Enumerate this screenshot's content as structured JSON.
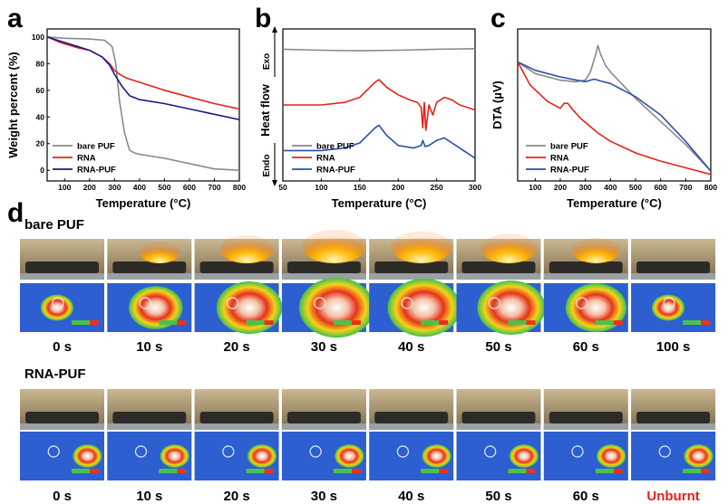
{
  "panels": {
    "a": "a",
    "b": "b",
    "c": "c",
    "d": "d"
  },
  "chart_data": [
    {
      "id": "a",
      "type": "line",
      "xlabel": "Temperature (°C)",
      "ylabel": "Weight percent (%)",
      "xlim": [
        30,
        800
      ],
      "ylim": [
        -8,
        106
      ],
      "xticks": [
        100,
        200,
        300,
        400,
        500,
        600,
        700,
        800
      ],
      "yticks": [
        0,
        20,
        40,
        60,
        80,
        100
      ],
      "legend_position": "bottom-left",
      "series": [
        {
          "name": "bare PUF",
          "color": "#8a8a8a",
          "x": [
            30,
            100,
            200,
            260,
            290,
            305,
            320,
            340,
            360,
            380,
            400,
            500,
            600,
            700,
            800
          ],
          "y": [
            100,
            99,
            98.5,
            97.5,
            93,
            80,
            52,
            28,
            15,
            13,
            12,
            9,
            5,
            1,
            0
          ]
        },
        {
          "name": "RNA",
          "color": "#e2231a",
          "x": [
            30,
            80,
            150,
            200,
            250,
            280,
            300,
            320,
            350,
            400,
            500,
            600,
            700,
            800
          ],
          "y": [
            100,
            96,
            92,
            90,
            85,
            80,
            75,
            72,
            69,
            66,
            60,
            55,
            50,
            46
          ]
        },
        {
          "name": "RNA-PUF",
          "color": "#1a1a8c",
          "x": [
            30,
            80,
            150,
            200,
            250,
            280,
            300,
            330,
            360,
            400,
            500,
            600,
            700,
            800
          ],
          "y": [
            100,
            97,
            93,
            90,
            85,
            79,
            72,
            63,
            56,
            53,
            50,
            46,
            42,
            38
          ]
        }
      ]
    },
    {
      "id": "b",
      "type": "line",
      "xlabel": "Temperature (°C)",
      "ylabel": "Heat flow",
      "exo_label": "Exo",
      "endo_label": "Endo",
      "xlim": [
        50,
        300
      ],
      "xticks": [
        50,
        100,
        150,
        200,
        250,
        300
      ],
      "legend_position": "bottom-center",
      "series": [
        {
          "name": "bare PUF",
          "color": "#8a8a8a",
          "x": [
            50,
            100,
            150,
            200,
            250,
            300
          ],
          "y": [
            0.0,
            -0.02,
            -0.03,
            -0.02,
            0.0,
            0.01
          ]
        },
        {
          "name": "RNA",
          "color": "#e2231a",
          "x": [
            50,
            100,
            130,
            150,
            160,
            170,
            175,
            185,
            200,
            215,
            225,
            230,
            232,
            234,
            236,
            240,
            245,
            250,
            260,
            270,
            280,
            290,
            300
          ],
          "y": [
            -1.1,
            -1.1,
            -1.05,
            -0.95,
            -0.8,
            -0.65,
            -0.6,
            -0.75,
            -0.9,
            -1.0,
            -1.05,
            -1.15,
            -1.55,
            -1.05,
            -1.6,
            -1.1,
            -1.3,
            -1.05,
            -0.95,
            -1.0,
            -1.1,
            -1.15,
            -1.2
          ]
        },
        {
          "name": "RNA-PUF",
          "color": "#2a4fa8",
          "x": [
            50,
            100,
            130,
            150,
            160,
            170,
            175,
            185,
            200,
            220,
            230,
            232,
            235,
            240,
            250,
            260,
            270,
            280,
            290,
            300
          ],
          "y": [
            -2.0,
            -2.0,
            -1.95,
            -1.85,
            -1.7,
            -1.55,
            -1.5,
            -1.7,
            -1.9,
            -1.95,
            -1.9,
            -1.8,
            -1.92,
            -1.9,
            -1.8,
            -1.75,
            -1.85,
            -1.95,
            -2.05,
            -2.15
          ]
        }
      ]
    },
    {
      "id": "c",
      "type": "line",
      "xlabel": "Temperature (°C)",
      "ylabel": "DTA (µV)",
      "xlim": [
        30,
        800
      ],
      "xticks": [
        100,
        200,
        300,
        400,
        500,
        600,
        700,
        800
      ],
      "legend_position": "bottom-center",
      "series": [
        {
          "name": "bare PUF",
          "color": "#8a8a8a",
          "x": [
            30,
            100,
            200,
            260,
            300,
            320,
            340,
            350,
            360,
            380,
            400,
            450,
            500,
            600,
            700,
            800
          ],
          "y": [
            0,
            -0.7,
            -1.1,
            -1.2,
            -1.1,
            -0.6,
            0.4,
            1.0,
            0.5,
            -0.2,
            -0.6,
            -1.4,
            -2.2,
            -3.6,
            -5.0,
            -6.6
          ]
        },
        {
          "name": "RNA",
          "color": "#e2231a",
          "x": [
            30,
            80,
            150,
            200,
            215,
            230,
            250,
            280,
            350,
            400,
            500,
            600,
            700,
            800
          ],
          "y": [
            0,
            -1.4,
            -2.4,
            -2.8,
            -2.5,
            -2.5,
            -2.9,
            -3.4,
            -4.3,
            -4.8,
            -5.5,
            -6.0,
            -6.4,
            -6.8
          ]
        },
        {
          "name": "RNA-PUF",
          "color": "#2a4fa8",
          "x": [
            30,
            100,
            200,
            300,
            330,
            340,
            360,
            400,
            500,
            600,
            700,
            800
          ],
          "y": [
            0,
            -0.5,
            -0.9,
            -1.2,
            -1.05,
            -1.05,
            -1.15,
            -1.3,
            -2.1,
            -3.2,
            -4.8,
            -6.6
          ]
        }
      ]
    }
  ],
  "panel_d": {
    "rows": [
      {
        "title": "bare PUF",
        "labels": [
          "0 s",
          "10 s",
          "20 s",
          "30 s",
          "40 s",
          "50 s",
          "60 s",
          "100 s"
        ],
        "flame_levels": [
          0,
          0.45,
          0.7,
          0.9,
          0.85,
          0.75,
          0.6,
          0
        ]
      },
      {
        "title": "RNA-PUF",
        "labels": [
          "0 s",
          "10 s",
          "20 s",
          "30 s",
          "40 s",
          "50 s",
          "60 s",
          "Unburnt"
        ],
        "flame_levels": [
          0,
          0,
          0,
          0,
          0,
          0,
          0,
          0
        ]
      }
    ],
    "colors": {
      "photo_top": "#c9b892",
      "photo_bottom": "#7d6a4c",
      "thermal_bg": "#2d5fd1",
      "unburnt": "#e2231a"
    }
  }
}
